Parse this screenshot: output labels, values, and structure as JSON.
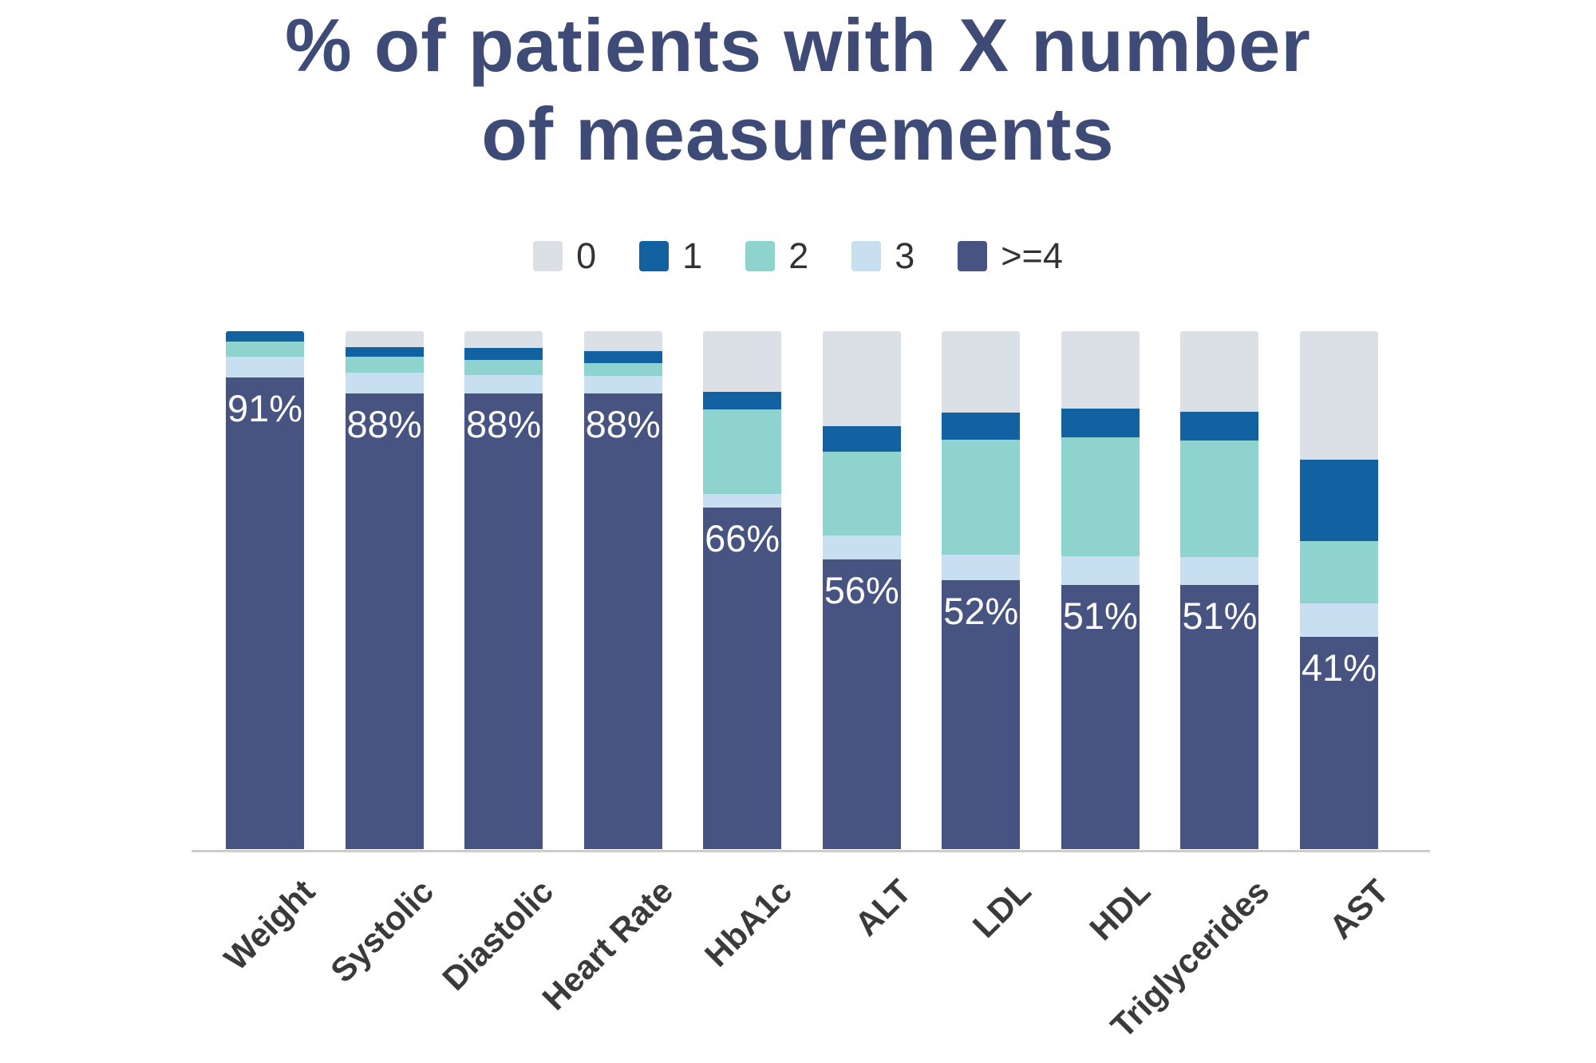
{
  "header": {
    "title_lines": [
      "% of patients with X number",
      "of measurements"
    ]
  },
  "colors": {
    "series_0": "#dbdfe6",
    "series_1": "#1261a0",
    "series_2": "#8ed3cd",
    "series_3": "#c8def1",
    "series_ge4": "#475380",
    "title_text": "#3e4b77",
    "axis_label_text": "#3a3a3a",
    "bar_value_text": "#ffffff",
    "axis_line": "#cccccc",
    "legend_text": "#333333"
  },
  "chart_data": {
    "type": "bar",
    "stacked": true,
    "percent_stacked": true,
    "title": "% of patients with X number of measurements",
    "xlabel": "",
    "ylabel": "",
    "ylim": [
      0,
      100
    ],
    "grid": false,
    "legend_position": "top",
    "categories": [
      "Weight",
      "Systolic",
      "Diastolic",
      "Heart Rate",
      "HbA1c",
      "ALT",
      "LDL",
      "HDL",
      "Triglycerides",
      "AST"
    ],
    "series": [
      {
        "name": "0",
        "color": "#dbdfe6",
        "values": [
          0,
          3,
          3.2,
          3.8,
          11.7,
          18.4,
          15.7,
          15,
          15.6,
          24.8
        ]
      },
      {
        "name": "1",
        "color": "#1261a0",
        "values": [
          2,
          2,
          2.3,
          2.3,
          3.4,
          4.8,
          5.2,
          5.5,
          5.5,
          15.7
        ]
      },
      {
        "name": "2",
        "color": "#8ed3cd",
        "values": [
          3,
          3,
          3,
          2.5,
          16.3,
          16.2,
          22.3,
          23,
          22.5,
          12
        ]
      },
      {
        "name": "3",
        "color": "#c8def1",
        "values": [
          4,
          4,
          3.5,
          3.4,
          2.6,
          4.6,
          4.8,
          5.5,
          5.4,
          6.5
        ]
      },
      {
        "name": ">=4",
        "color": "#475380",
        "values": [
          91,
          88,
          88,
          88,
          66,
          56,
          52,
          51,
          51,
          41
        ]
      }
    ],
    "bar_labels": [
      "91%",
      "88%",
      "88%",
      "88%",
      "66%",
      "56%",
      "52%",
      "51%",
      "51%",
      "41%"
    ]
  }
}
